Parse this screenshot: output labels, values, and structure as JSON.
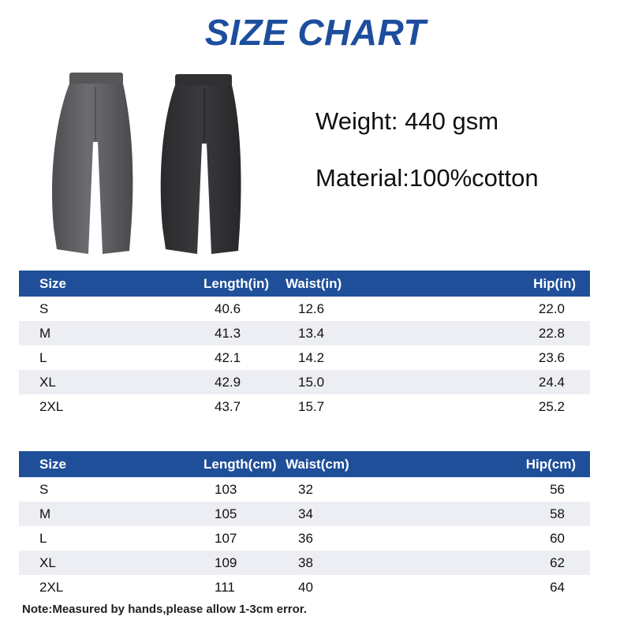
{
  "title": "SIZE CHART",
  "specs": {
    "weight": "Weight: 440 gsm",
    "material": "Material:100%cotton"
  },
  "product_images": {
    "left": {
      "icon": "grey-sweatpants-icon",
      "color": "#5f5f63"
    },
    "right": {
      "icon": "black-sweatpants-icon",
      "color": "#2c2c2f"
    }
  },
  "colors": {
    "header_bg": "#1f4f99",
    "title": "#1d4e9e",
    "stripe": "#eceef3"
  },
  "table_inches": {
    "headers": [
      "Size",
      "Length(in)",
      "Waist(in)",
      "Hip(in)"
    ],
    "rows": [
      [
        "S",
        "40.6",
        "12.6",
        "22.0"
      ],
      [
        "M",
        "41.3",
        "13.4",
        "22.8"
      ],
      [
        "L",
        "42.1",
        "14.2",
        "23.6"
      ],
      [
        "XL",
        "42.9",
        "15.0",
        "24.4"
      ],
      [
        "2XL",
        "43.7",
        "15.7",
        "25.2"
      ]
    ]
  },
  "table_cm": {
    "headers": [
      "Size",
      "Length(cm)",
      "Waist(cm)",
      "Hip(cm)"
    ],
    "rows": [
      [
        "S",
        "103",
        "32",
        "56"
      ],
      [
        "M",
        "105",
        "34",
        "58"
      ],
      [
        "L",
        "107",
        "36",
        "60"
      ],
      [
        "XL",
        "109",
        "38",
        "62"
      ],
      [
        "2XL",
        "111",
        "40",
        "64"
      ]
    ]
  },
  "note": "Note:Measured by hands,please allow 1-3cm error."
}
